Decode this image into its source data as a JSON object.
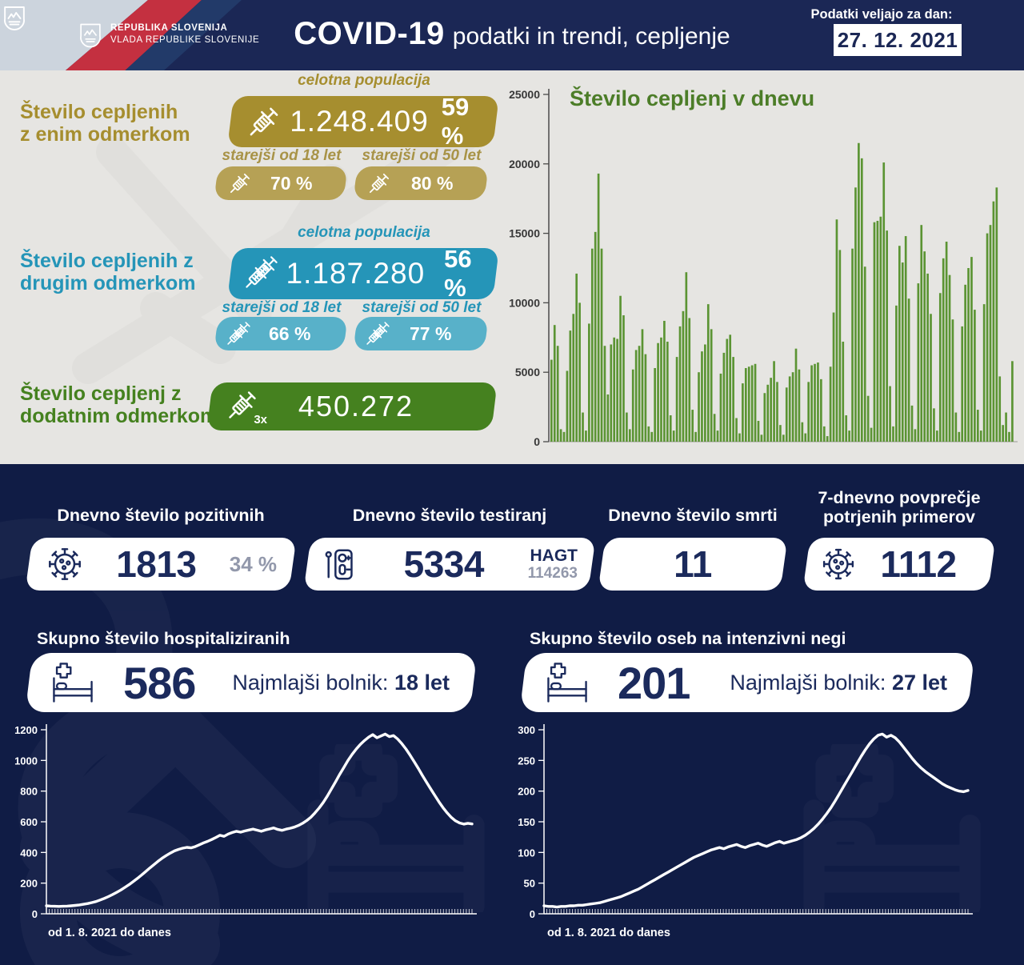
{
  "header": {
    "org_line1": "REPUBLIKA SLOVENIJA",
    "org_line2": "VLADA REPUBLIKE SLOVENIJE",
    "title_bold": "COVID-19",
    "title_rest": "podatki in trendi, cepljenje",
    "date_label": "Podatki veljajo za dan:",
    "date_value": "27. 12. 2021"
  },
  "vaccination": {
    "first_dose": {
      "title_line1": "Število cepljenih",
      "title_line2": "z enim odmerkom",
      "population_label": "celotna populacija",
      "count": "1.248.409",
      "percent": "59 %",
      "over18_label": "starejši od 18 let",
      "over18_percent": "70 %",
      "over50_label": "starejši od 50 let",
      "over50_percent": "80 %",
      "color": "#a68e2f",
      "color_light": "#b6a155"
    },
    "second_dose": {
      "title_line1": "Število cepljenih z",
      "title_line2": "drugim odmerkom",
      "population_label": "celotna populacija",
      "count": "1.187.280",
      "percent": "56 %",
      "over18_label": "starejši od 18 let",
      "over18_percent": "66 %",
      "over50_label": "starejši od 50 let",
      "over50_percent": "77 %",
      "color": "#2595b8",
      "color_light": "#58b1c9"
    },
    "booster": {
      "title_line1": "Število cepljenj z",
      "title_line2": "dodatnim odmerkom",
      "count": "450.272",
      "multiplier": "3x",
      "color": "#45811f"
    }
  },
  "daily_stats": {
    "positive": {
      "label": "Dnevno število pozitivnih",
      "value": "1813",
      "secondary": "34 %"
    },
    "tests": {
      "label": "Dnevno število testiranj",
      "value": "5334",
      "hagt_label": "HAGT",
      "hagt_value": "114263"
    },
    "deaths": {
      "label": "Dnevno število smrti",
      "value": "11"
    },
    "avg7": {
      "label_line1": "7-dnevno povprečje",
      "label_line2": "potrjenih primerov",
      "value": "1112"
    }
  },
  "hospital": {
    "title": "Skupno število hospitaliziranih",
    "value": "586",
    "youngest_label": "Najmlajši bolnik:",
    "youngest_value": "18 let",
    "range_label": "od 1. 8. 2021 do danes"
  },
  "icu": {
    "title": "Skupno število oseb na intenzivni negi",
    "value": "201",
    "youngest_label": "Najmlajši bolnik:",
    "youngest_value": "27 let",
    "range_label": "od 1. 8. 2021 do danes"
  },
  "chart_data": [
    {
      "id": "vaccinations_daily",
      "type": "bar",
      "title": "Število cepljenj v dnevu",
      "xlabel": "",
      "ylabel": "",
      "ylim": [
        0,
        25000
      ],
      "yticks": [
        0,
        5000,
        10000,
        15000,
        20000,
        25000
      ],
      "bar_color": "#5b9433",
      "x_range": "1. 8. 2021 – 27. 12. 2021 (daily)",
      "values": [
        5900,
        8400,
        6900,
        900,
        700,
        5100,
        8000,
        9200,
        12100,
        10000,
        2100,
        800,
        8500,
        13900,
        15100,
        19300,
        13900,
        6900,
        3400,
        7000,
        7500,
        7400,
        10500,
        9100,
        2100,
        900,
        5200,
        6600,
        6900,
        8100,
        6300,
        1100,
        700,
        5300,
        7100,
        7500,
        8700,
        7200,
        1900,
        800,
        6100,
        8300,
        9400,
        12200,
        8900,
        2300,
        700,
        5000,
        6500,
        7000,
        9900,
        8100,
        2000,
        800,
        4900,
        6400,
        7400,
        7700,
        6100,
        1700,
        600,
        4200,
        5300,
        5400,
        5500,
        5600,
        1500,
        500,
        3500,
        4100,
        4600,
        5800,
        4300,
        1200,
        500,
        3900,
        4700,
        5000,
        6700,
        5200,
        1400,
        600,
        4300,
        5500,
        5600,
        5700,
        4500,
        1100,
        400,
        5400,
        9300,
        16000,
        13800,
        7200,
        1900,
        800,
        13900,
        18300,
        21500,
        20400,
        12600,
        3300,
        1000,
        15800,
        15900,
        16200,
        20100,
        15200,
        4000,
        1100,
        9800,
        14100,
        12900,
        14800,
        10300,
        2600,
        900,
        11400,
        15600,
        13700,
        12100,
        9200,
        2400,
        800,
        10700,
        13200,
        14400,
        12000,
        8800,
        2100,
        700,
        8300,
        11300,
        12500,
        13300,
        9500,
        2300,
        800,
        9900,
        15000,
        15600,
        17300,
        18300,
        4700,
        1200,
        2100,
        700,
        5800
      ]
    },
    {
      "id": "hospitalized",
      "type": "line",
      "title": "Skupno število hospitaliziranih",
      "xlabel": "od 1. 8. 2021 do danes",
      "ylim": [
        0,
        1200
      ],
      "yticks": [
        0,
        200,
        400,
        600,
        800,
        1000,
        1200
      ],
      "line_color": "#ffffff",
      "values": [
        52,
        50,
        49,
        48,
        49,
        50,
        52,
        55,
        58,
        62,
        67,
        73,
        80,
        90,
        100,
        112,
        125,
        140,
        155,
        172,
        190,
        210,
        230,
        252,
        275,
        298,
        320,
        342,
        362,
        380,
        396,
        410,
        420,
        428,
        433,
        430,
        438,
        450,
        462,
        472,
        484,
        498,
        512,
        505,
        520,
        530,
        538,
        532,
        540,
        546,
        552,
        545,
        538,
        547,
        553,
        560,
        550,
        544,
        552,
        558,
        565,
        576,
        590,
        608,
        630,
        658,
        690,
        726,
        768,
        815,
        862,
        910,
        955,
        1000,
        1040,
        1075,
        1105,
        1130,
        1152,
        1168,
        1148,
        1160,
        1172,
        1155,
        1162,
        1140,
        1110,
        1075,
        1035,
        992,
        948,
        902,
        858,
        815,
        772,
        730,
        692,
        658,
        628,
        606,
        592,
        585,
        590,
        586
      ]
    },
    {
      "id": "icu",
      "type": "line",
      "title": "Skupno število oseb na intenzivni negi",
      "xlabel": "od 1. 8. 2021 do danes",
      "ylim": [
        0,
        300
      ],
      "yticks": [
        0,
        50,
        100,
        150,
        200,
        250,
        300
      ],
      "line_color": "#ffffff",
      "values": [
        13,
        12,
        12,
        11,
        12,
        12,
        13,
        13,
        14,
        14,
        15,
        16,
        17,
        18,
        20,
        22,
        24,
        26,
        28,
        31,
        34,
        37,
        40,
        44,
        48,
        52,
        56,
        60,
        64,
        68,
        72,
        76,
        80,
        84,
        88,
        92,
        95,
        98,
        101,
        104,
        106,
        108,
        106,
        109,
        111,
        113,
        110,
        108,
        111,
        113,
        115,
        112,
        110,
        113,
        116,
        118,
        115,
        117,
        119,
        121,
        124,
        128,
        133,
        139,
        146,
        154,
        163,
        173,
        184,
        196,
        208,
        220,
        232,
        244,
        256,
        267,
        277,
        285,
        291,
        293,
        288,
        291,
        287,
        280,
        271,
        262,
        253,
        245,
        238,
        232,
        227,
        222,
        217,
        212,
        208,
        205,
        202,
        200,
        199,
        201
      ]
    }
  ]
}
